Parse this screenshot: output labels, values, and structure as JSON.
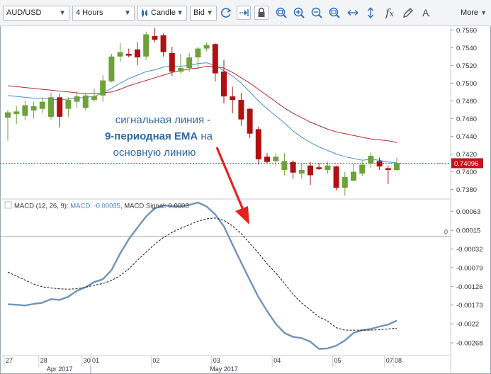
{
  "toolbar": {
    "symbol": "AUD/USD",
    "timeframe": "4 Hours",
    "chart_type": "Candle",
    "price_type": "Bid",
    "more_label": "More",
    "icons": [
      "refresh-icon",
      "scroll-right-icon",
      "lock-icon",
      "zoom-fit-icon",
      "zoom-in-icon",
      "zoom-out-icon",
      "zoom-auto-icon",
      "horizontal-expand-icon",
      "vertical-expand-icon",
      "indicator-fx-icon",
      "draw-pencil-icon",
      "text-annotation-icon"
    ]
  },
  "annotation": {
    "line1": "сигнальная линия -",
    "line2_bold": "9-периодная EMA",
    "line2_rest": " на",
    "line3": "основную линию"
  },
  "price_panel": {
    "current_price": "0.74096",
    "current_price_value": 0.74096,
    "y_ticks": [
      0.756,
      0.754,
      0.752,
      0.75,
      0.748,
      0.746,
      0.744,
      0.742,
      0.74,
      0.738
    ],
    "y_tick_labels": [
      "0.7560",
      "0.7540",
      "0.7520",
      "0.7500",
      "0.7480",
      "0.7460",
      "0.7440",
      "0.7420",
      "0.7400",
      "0.7380"
    ]
  },
  "macd_panel": {
    "legend_name": "MACD (12, 26, 9): ",
    "legend_macd": "MACD: -0.00035",
    "legend_sep": ", ",
    "legend_signal": "MACD Signal: 0.0003",
    "zero_label": "0",
    "y_ticks": [
      0.00063,
      0.00015,
      -0.00032,
      -0.00079,
      -0.00126,
      -0.00173,
      -0.0022,
      -0.00268
    ],
    "y_tick_labels": [
      "0.00063",
      "0.00015",
      "-0.00032",
      "-0.00079",
      "-0.00126",
      "-0.00173",
      "-0.0022",
      "-0.00268"
    ]
  },
  "x_axis": {
    "day_labels": [
      "27",
      "28",
      "30",
      "01",
      "02",
      "03",
      "04",
      "05",
      "07",
      "08"
    ],
    "month_labels": [
      "Apr 2017",
      "May 2017"
    ]
  },
  "colors": {
    "bull": "#6ea13a",
    "bear": "#b01010",
    "ema_fast": "#4a8fd6",
    "ema_slow": "#b02a2a",
    "macd": "#6f93be",
    "signal": "#111111",
    "arrow": "#e8201e",
    "annotation_text": "#2d6aa8"
  },
  "chart_data": [
    {
      "type": "candlestick",
      "title": "AUD/USD",
      "ylim": [
        0.737,
        0.7565
      ],
      "candles": [
        {
          "o": 0.7461,
          "h": 0.747,
          "l": 0.7435,
          "c": 0.7467
        },
        {
          "o": 0.7465,
          "h": 0.7474,
          "l": 0.7454,
          "c": 0.7468
        },
        {
          "o": 0.7463,
          "h": 0.748,
          "l": 0.7458,
          "c": 0.7475
        },
        {
          "o": 0.7469,
          "h": 0.7479,
          "l": 0.746,
          "c": 0.7474
        },
        {
          "o": 0.7471,
          "h": 0.7484,
          "l": 0.7466,
          "c": 0.7479
        },
        {
          "o": 0.7462,
          "h": 0.7489,
          "l": 0.7459,
          "c": 0.7484
        },
        {
          "o": 0.7484,
          "h": 0.7488,
          "l": 0.745,
          "c": 0.7462
        },
        {
          "o": 0.7471,
          "h": 0.7484,
          "l": 0.7462,
          "c": 0.7481
        },
        {
          "o": 0.7479,
          "h": 0.7491,
          "l": 0.7472,
          "c": 0.7485
        },
        {
          "o": 0.7472,
          "h": 0.7489,
          "l": 0.7469,
          "c": 0.7486
        },
        {
          "o": 0.7481,
          "h": 0.7494,
          "l": 0.7479,
          "c": 0.7485
        },
        {
          "o": 0.7486,
          "h": 0.7509,
          "l": 0.7479,
          "c": 0.7503
        },
        {
          "o": 0.7502,
          "h": 0.7533,
          "l": 0.7501,
          "c": 0.753
        },
        {
          "o": 0.753,
          "h": 0.7545,
          "l": 0.7524,
          "c": 0.7535
        },
        {
          "o": 0.7533,
          "h": 0.7539,
          "l": 0.7529,
          "c": 0.7531
        },
        {
          "o": 0.7538,
          "h": 0.7546,
          "l": 0.752,
          "c": 0.7529
        },
        {
          "o": 0.753,
          "h": 0.7558,
          "l": 0.7526,
          "c": 0.7555
        },
        {
          "o": 0.7553,
          "h": 0.7562,
          "l": 0.7546,
          "c": 0.7549
        },
        {
          "o": 0.7554,
          "h": 0.7556,
          "l": 0.753,
          "c": 0.7535
        },
        {
          "o": 0.7534,
          "h": 0.7541,
          "l": 0.7508,
          "c": 0.7513
        },
        {
          "o": 0.7513,
          "h": 0.7533,
          "l": 0.7511,
          "c": 0.7517
        },
        {
          "o": 0.7517,
          "h": 0.7534,
          "l": 0.7513,
          "c": 0.7529
        },
        {
          "o": 0.7529,
          "h": 0.7541,
          "l": 0.7515,
          "c": 0.7539
        },
        {
          "o": 0.7539,
          "h": 0.7546,
          "l": 0.7536,
          "c": 0.7543
        },
        {
          "o": 0.7544,
          "h": 0.7545,
          "l": 0.7502,
          "c": 0.7511
        },
        {
          "o": 0.7513,
          "h": 0.7526,
          "l": 0.7477,
          "c": 0.7485
        },
        {
          "o": 0.7485,
          "h": 0.7496,
          "l": 0.7466,
          "c": 0.7481
        },
        {
          "o": 0.7481,
          "h": 0.7489,
          "l": 0.7452,
          "c": 0.7459
        },
        {
          "o": 0.7471,
          "h": 0.7472,
          "l": 0.7438,
          "c": 0.7443
        },
        {
          "o": 0.7448,
          "h": 0.7451,
          "l": 0.7408,
          "c": 0.7414
        },
        {
          "o": 0.7417,
          "h": 0.7421,
          "l": 0.741,
          "c": 0.7411
        },
        {
          "o": 0.7412,
          "h": 0.7421,
          "l": 0.7407,
          "c": 0.7417
        },
        {
          "o": 0.7402,
          "h": 0.7421,
          "l": 0.7396,
          "c": 0.7412
        },
        {
          "o": 0.7411,
          "h": 0.7413,
          "l": 0.7392,
          "c": 0.7399
        },
        {
          "o": 0.7398,
          "h": 0.741,
          "l": 0.7392,
          "c": 0.7402
        },
        {
          "o": 0.7407,
          "h": 0.7411,
          "l": 0.7385,
          "c": 0.7396
        },
        {
          "o": 0.7405,
          "h": 0.741,
          "l": 0.7402,
          "c": 0.7403
        },
        {
          "o": 0.7402,
          "h": 0.7411,
          "l": 0.7398,
          "c": 0.7407
        },
        {
          "o": 0.7406,
          "h": 0.7407,
          "l": 0.7379,
          "c": 0.7382
        },
        {
          "o": 0.7382,
          "h": 0.74,
          "l": 0.7373,
          "c": 0.7394
        },
        {
          "o": 0.739,
          "h": 0.7409,
          "l": 0.7389,
          "c": 0.74
        },
        {
          "o": 0.7398,
          "h": 0.7412,
          "l": 0.7395,
          "c": 0.7408
        },
        {
          "o": 0.7409,
          "h": 0.7422,
          "l": 0.7404,
          "c": 0.7418
        },
        {
          "o": 0.7412,
          "h": 0.7416,
          "l": 0.7402,
          "c": 0.7406
        },
        {
          "o": 0.7404,
          "h": 0.7407,
          "l": 0.7386,
          "c": 0.7402
        },
        {
          "o": 0.7402,
          "h": 0.7416,
          "l": 0.7401,
          "c": 0.741
        }
      ],
      "series": [
        {
          "values": [
            0.7486,
            0.7485,
            0.7484,
            0.7483,
            0.7483,
            0.7482,
            0.7481,
            0.7482,
            0.7483,
            0.7484,
            0.7485,
            0.7489,
            0.7494,
            0.75,
            0.7505,
            0.7509,
            0.7513,
            0.7515,
            0.7518,
            0.7519,
            0.7519,
            0.752,
            0.7522,
            0.7523,
            0.752,
            0.7514,
            0.7508,
            0.75,
            0.749,
            0.748,
            0.7471,
            0.7463,
            0.7455,
            0.7446,
            0.7439,
            0.7433,
            0.7428,
            0.7424,
            0.742,
            0.7417,
            0.7415,
            0.7413,
            0.7414,
            0.7413,
            0.7411,
            0.741
          ]
        },
        {
          "values": [
            0.7497,
            0.7496,
            0.7495,
            0.7494,
            0.7493,
            0.7492,
            0.7491,
            0.749,
            0.7489,
            0.7488,
            0.7488,
            0.7489,
            0.749,
            0.7493,
            0.7497,
            0.75,
            0.7503,
            0.7506,
            0.7509,
            0.7512,
            0.7514,
            0.7516,
            0.7517,
            0.7519,
            0.7519,
            0.7517,
            0.7512,
            0.7506,
            0.75,
            0.7493,
            0.7486,
            0.7479,
            0.7472,
            0.7466,
            0.7461,
            0.7456,
            0.7452,
            0.7448,
            0.7445,
            0.7443,
            0.7441,
            0.7439,
            0.7437,
            0.7436,
            0.7435,
            0.7433
          ]
        }
      ]
    },
    {
      "type": "line",
      "title": "MACD (12, 26, 9)",
      "ylim": [
        -0.003,
        0.00092
      ],
      "series": [
        {
          "values": [
            -0.00171,
            -0.00172,
            -0.00174,
            -0.0017,
            -0.00167,
            -0.00158,
            -0.0016,
            -0.00152,
            -0.00137,
            -0.00128,
            -0.00115,
            -0.00108,
            -0.00085,
            -0.00043,
            -7e-05,
            0.00022,
            0.0005,
            0.0007,
            0.00078,
            0.00076,
            0.00075,
            0.00079,
            0.00085,
            0.00075,
            0.00055,
            0.00025,
            -0.00021,
            -0.00066,
            -0.0011,
            -0.00153,
            -0.00188,
            -0.0022,
            -0.00243,
            -0.00253,
            -0.00256,
            -0.00265,
            -0.00283,
            -0.00282,
            -0.00275,
            -0.00262,
            -0.00243,
            -0.00236,
            -0.00233,
            -0.00227,
            -0.00222,
            -0.00212
          ]
        },
        {
          "values": [
            -0.0009,
            -0.001,
            -0.0011,
            -0.0012,
            -0.00127,
            -0.0013,
            -0.00132,
            -0.00133,
            -0.00132,
            -0.00128,
            -0.00123,
            -0.00119,
            -0.00111,
            -0.00099,
            -0.00082,
            -0.0006,
            -0.0004,
            -0.0002,
            -3e-05,
            0.0001,
            0.0002,
            0.00029,
            0.00038,
            0.00044,
            0.00046,
            0.0004,
            0.00026,
            7e-05,
            -0.00018,
            -0.00042,
            -0.00069,
            -0.00092,
            -0.00118,
            -0.00146,
            -0.00168,
            -0.00185,
            -0.00203,
            -0.00213,
            -0.0023,
            -0.00236,
            -0.00236,
            -0.00236,
            -0.00236,
            -0.00235,
            -0.00233,
            -0.00231
          ]
        }
      ]
    }
  ]
}
